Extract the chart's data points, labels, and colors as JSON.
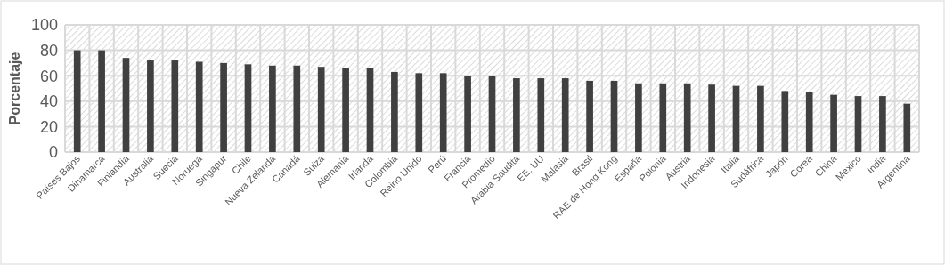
{
  "chart_data": {
    "type": "bar",
    "ylabel": "Porcentaje",
    "categories": [
      "Países Bajos",
      "Dinamarca",
      "Finlandia",
      "Australia",
      "Suecia",
      "Noruega",
      "Singapur",
      "Chile",
      "Nueva Zelanda",
      "Canadá",
      "Suiza",
      "Alemania",
      "Irlanda",
      "Colombia",
      "Reino Unido",
      "Perú",
      "Francia",
      "Promedio",
      "Arabia Saudita",
      "EE. UU",
      "Malasia",
      "Brasil",
      "RAE de Hong Kong",
      "España",
      "Polonia",
      "Austria",
      "Indonesia",
      "Italia",
      "Sudáfrica",
      "Japón",
      "Corea",
      "China",
      "México",
      "India",
      "Argentina"
    ],
    "values": [
      80,
      80,
      74,
      72,
      72,
      71,
      70,
      69,
      68,
      68,
      67,
      66,
      66,
      63,
      62,
      62,
      60,
      60,
      58,
      58,
      58,
      56,
      56,
      54,
      54,
      54,
      53,
      52,
      52,
      48,
      47,
      45,
      44,
      44,
      38
    ],
    "color": "#404040",
    "ylim": [
      0,
      100
    ],
    "yticks": [
      0,
      20,
      40,
      60,
      80,
      100
    ],
    "grid": true
  }
}
